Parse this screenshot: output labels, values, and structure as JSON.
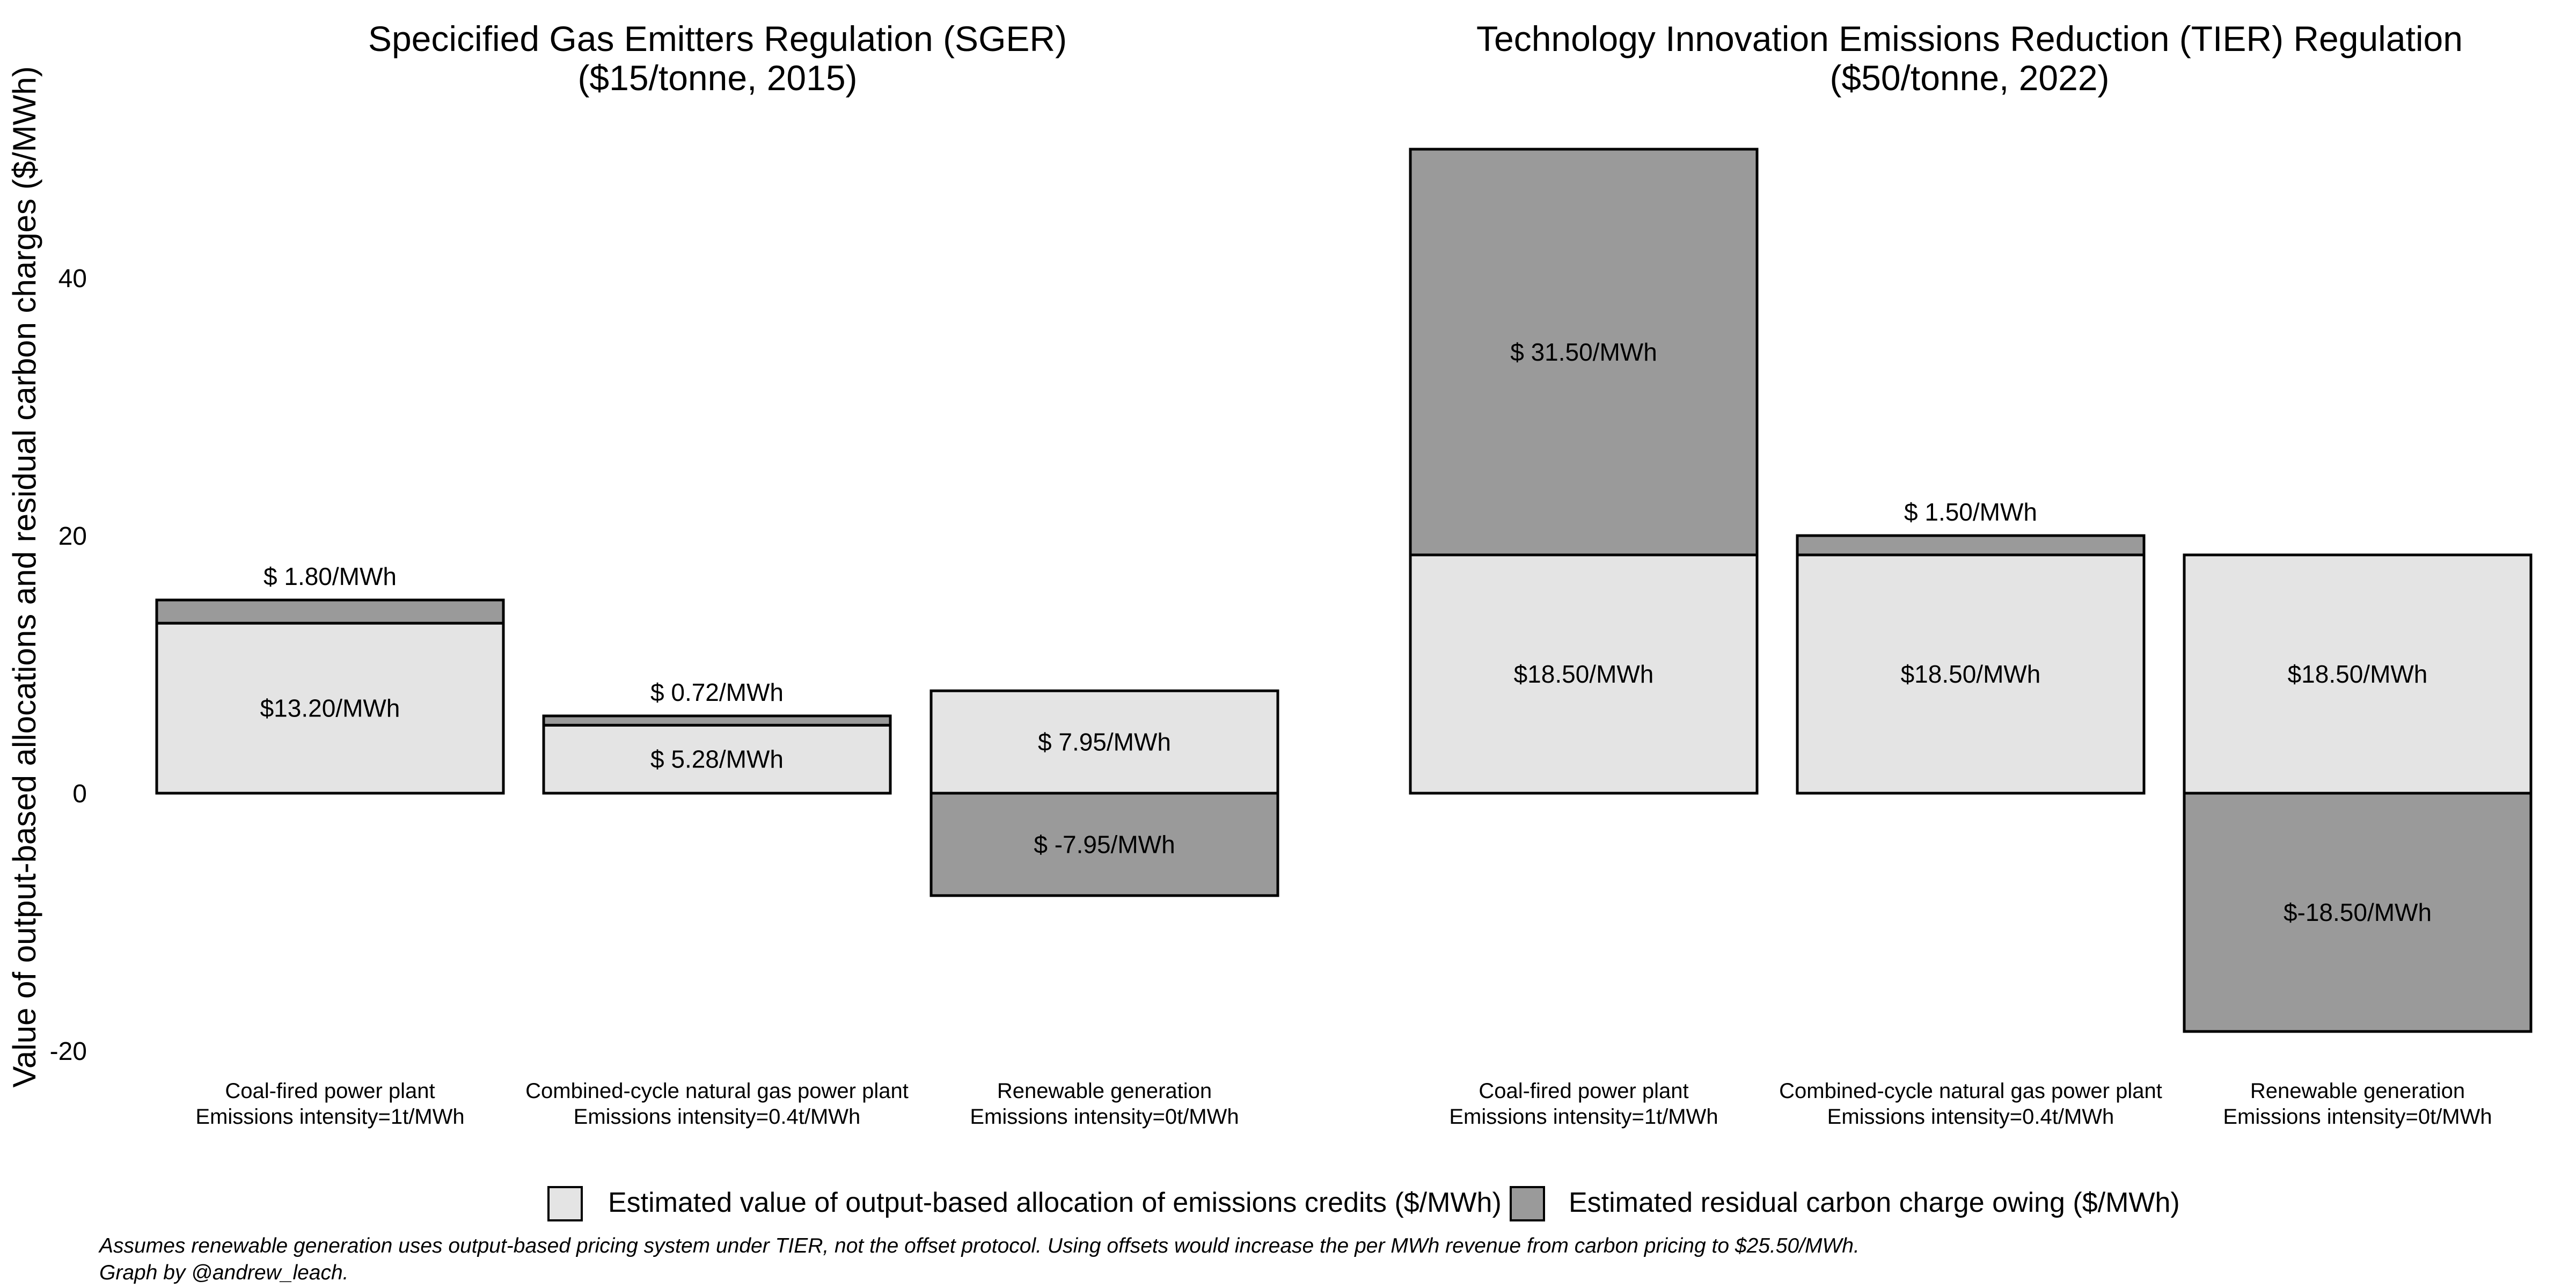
{
  "colors": {
    "allocation": "#e4e4e4",
    "residual": "#9a9a9a",
    "outline": "#000000"
  },
  "chart_data": {
    "type": "bar",
    "stacked": true,
    "ylabel": "Value of output-based allocations and residual carbon charges ($/MWh)",
    "ylim": [
      -25,
      55
    ],
    "yticks": [
      -20,
      0,
      20,
      40
    ],
    "grid": false,
    "legend_position": "bottom",
    "legend": [
      {
        "key": "allocation",
        "label": "Estimated value of output-based allocation of emissions credits ($/MWh)"
      },
      {
        "key": "residual",
        "label": "Estimated residual carbon charge owing ($/MWh)"
      }
    ],
    "panels": [
      {
        "title_line1": "Specicified Gas Emitters Regulation (SGER)",
        "title_line2": "($15/tonne, 2015)",
        "categories": [
          {
            "line1": "Coal-fired power plant",
            "line2": "Emissions intensity=1t/MWh"
          },
          {
            "line1": "Combined-cycle natural gas power plant",
            "line2": "Emissions intensity=0.4t/MWh"
          },
          {
            "line1": "Renewable generation",
            "line2": "Emissions intensity=0t/MWh"
          }
        ],
        "series": [
          {
            "key": "allocation",
            "values": [
              13.2,
              5.28,
              7.95
            ],
            "labels": [
              "$13.20/MWh",
              "$ 5.28/MWh",
              "$ 7.95/MWh"
            ]
          },
          {
            "key": "residual",
            "values": [
              1.8,
              0.72,
              -7.95
            ],
            "labels": [
              "$  1.80/MWh",
              "$  0.72/MWh",
              "$ -7.95/MWh"
            ]
          }
        ]
      },
      {
        "title_line1": "Technology Innovation Emissions Reduction (TIER) Regulation",
        "title_line2": "($50/tonne, 2022)",
        "categories": [
          {
            "line1": "Coal-fired power plant",
            "line2": "Emissions intensity=1t/MWh"
          },
          {
            "line1": "Combined-cycle natural gas power plant",
            "line2": "Emissions intensity=0.4t/MWh"
          },
          {
            "line1": "Renewable generation",
            "line2": "Emissions intensity=0t/MWh"
          }
        ],
        "series": [
          {
            "key": "allocation",
            "values": [
              18.5,
              18.5,
              18.5
            ],
            "labels": [
              "$18.50/MWh",
              "$18.50/MWh",
              "$18.50/MWh"
            ]
          },
          {
            "key": "residual",
            "values": [
              31.5,
              1.5,
              -18.5
            ],
            "labels": [
              "$ 31.50/MWh",
              "$  1.50/MWh",
              "$-18.50/MWh"
            ]
          }
        ]
      }
    ]
  },
  "caption": {
    "line1": "Assumes renewable generation uses output-based pricing system under TIER, not the offset protocol. Using offsets would increase the per MWh revenue from carbon pricing to $25.50/MWh.",
    "line2": "Graph by @andrew_leach."
  }
}
